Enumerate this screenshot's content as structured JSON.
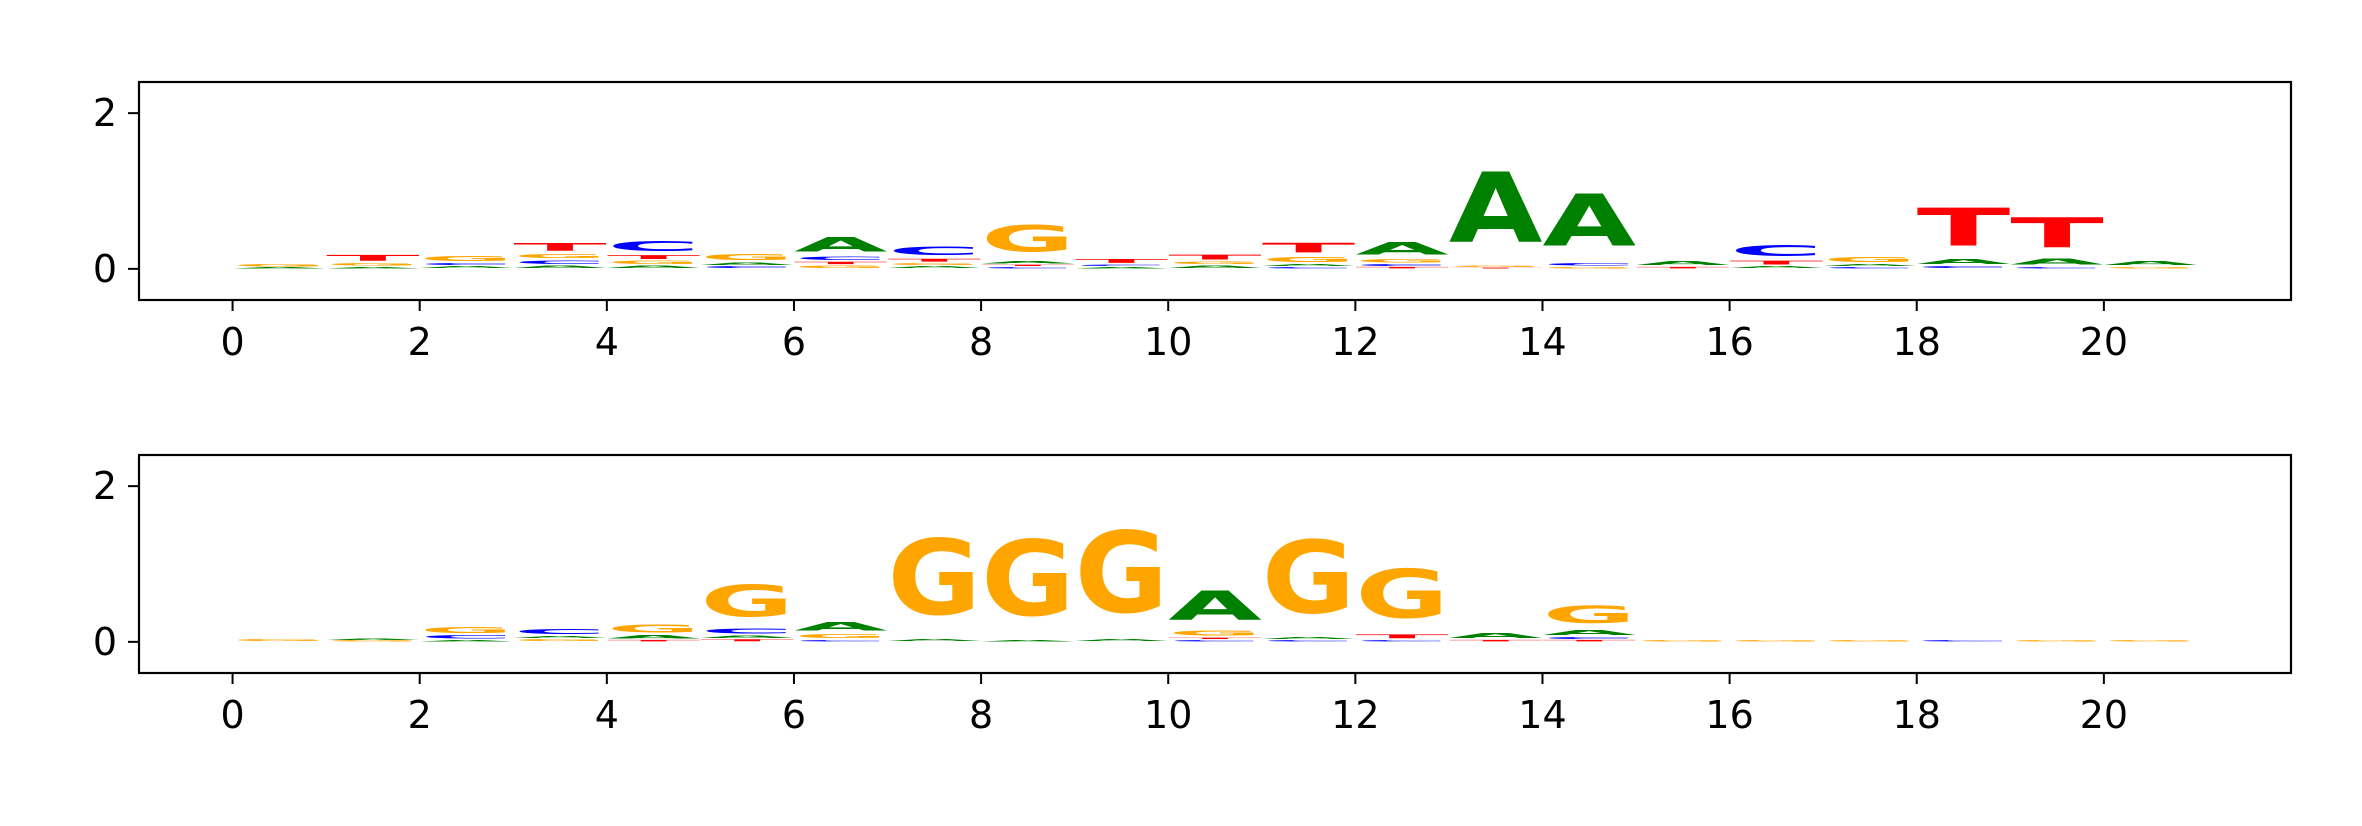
{
  "colors": {
    "A": "#008000",
    "C": "#0000ff",
    "G": "#ffa500",
    "T": "#ff0000"
  },
  "chart_data": [
    {
      "type": "sequence-logo",
      "title": "",
      "xlabel": "",
      "ylabel": "",
      "xlim": [
        -1,
        22
      ],
      "ylim": [
        -0.4,
        2.4
      ],
      "x_ticks": [
        "0",
        "2",
        "4",
        "6",
        "8",
        "10",
        "12",
        "14",
        "16",
        "18",
        "20"
      ],
      "y_ticks": [
        "0",
        "2"
      ],
      "columns": [
        {
          "x": 0,
          "letters": {
            "G": 0.05,
            "A": 0.02
          }
        },
        {
          "x": 1,
          "letters": {
            "A": 0.03,
            "G": 0.05,
            "T": 0.12
          }
        },
        {
          "x": 2,
          "letters": {
            "A": 0.04,
            "C": 0.04,
            "G": 0.1
          }
        },
        {
          "x": 3,
          "letters": {
            "A": 0.05,
            "C": 0.07,
            "G": 0.08,
            "T": 0.16
          }
        },
        {
          "x": 4,
          "letters": {
            "A": 0.05,
            "T": 0.08,
            "G": 0.06,
            "C": 0.2
          }
        },
        {
          "x": 5,
          "letters": {
            "A": 0.05,
            "C": 0.04,
            "G": 0.12
          }
        },
        {
          "x": 6,
          "letters": {
            "G": 0.05,
            "T": 0.05,
            "C": 0.06,
            "A": 0.3
          }
        },
        {
          "x": 7,
          "letters": {
            "A": 0.04,
            "G": 0.04,
            "T": 0.06,
            "C": 0.17
          }
        },
        {
          "x": 8,
          "letters": {
            "C": 0.03,
            "A": 0.05,
            "T": 0.03,
            "G": 0.55
          }
        },
        {
          "x": 9,
          "letters": {
            "A": 0.03,
            "C": 0.03,
            "T": 0.08
          }
        },
        {
          "x": 10,
          "letters": {
            "A": 0.05,
            "G": 0.05,
            "T": 0.1
          }
        },
        {
          "x": 11,
          "letters": {
            "A": 0.04,
            "C": 0.03,
            "G": 0.1,
            "T": 0.2
          }
        },
        {
          "x": 12,
          "letters": {
            "C": 0.04,
            "T": 0.03,
            "G": 0.06,
            "A": 0.26
          }
        },
        {
          "x": 13,
          "letters": {
            "G": 0.03,
            "T": 0.02,
            "A": 1.45
          }
        },
        {
          "x": 14,
          "letters": {
            "G": 0.03,
            "C": 0.05,
            "A": 1.07
          }
        },
        {
          "x": 15,
          "letters": {
            "T": 0.03,
            "A": 0.08
          }
        },
        {
          "x": 16,
          "letters": {
            "A": 0.04,
            "T": 0.08,
            "C": 0.22
          }
        },
        {
          "x": 17,
          "letters": {
            "C": 0.03,
            "A": 0.04,
            "G": 0.1
          }
        },
        {
          "x": 18,
          "letters": {
            "C": 0.04,
            "A": 0.1,
            "T": 0.78
          }
        },
        {
          "x": 19,
          "letters": {
            "C": 0.03,
            "A": 0.12,
            "T": 0.62
          }
        },
        {
          "x": 20,
          "letters": {
            "G": 0.03,
            "A": 0.08
          }
        }
      ]
    },
    {
      "type": "sequence-logo",
      "title": "",
      "xlabel": "",
      "ylabel": "",
      "xlim": [
        -1,
        22
      ],
      "ylim": [
        -0.4,
        2.4
      ],
      "x_ticks": [
        "0",
        "2",
        "4",
        "6",
        "8",
        "10",
        "12",
        "14",
        "16",
        "18",
        "20"
      ],
      "y_ticks": [
        "0",
        "2"
      ],
      "columns": [
        {
          "x": 0,
          "letters": {
            "G": 0.04
          }
        },
        {
          "x": 1,
          "letters": {
            "A": 0.03,
            "G": 0.02
          }
        },
        {
          "x": 2,
          "letters": {
            "A": 0.03,
            "C": 0.06,
            "G": 0.12
          }
        },
        {
          "x": 3,
          "letters": {
            "G": 0.04,
            "A": 0.04,
            "C": 0.1
          }
        },
        {
          "x": 4,
          "letters": {
            "T": 0.03,
            "A": 0.06,
            "G": 0.16
          }
        },
        {
          "x": 5,
          "letters": {
            "T": 0.04,
            "A": 0.05,
            "C": 0.1,
            "G": 0.65
          }
        },
        {
          "x": 6,
          "letters": {
            "C": 0.03,
            "G": 0.08,
            "A": 0.17
          }
        },
        {
          "x": 7,
          "letters": {
            "A": 0.04,
            "G": 1.55
          }
        },
        {
          "x": 8,
          "letters": {
            "A": 0.03,
            "G": 1.55
          }
        },
        {
          "x": 9,
          "letters": {
            "A": 0.04,
            "G": 1.68
          }
        },
        {
          "x": 10,
          "letters": {
            "C": 0.03,
            "T": 0.03,
            "G": 0.1,
            "A": 0.6
          }
        },
        {
          "x": 11,
          "letters": {
            "C": 0.03,
            "A": 0.04,
            "G": 1.5
          }
        },
        {
          "x": 12,
          "letters": {
            "C": 0.03,
            "T": 0.08,
            "G": 1.0
          }
        },
        {
          "x": 13,
          "letters": {
            "T": 0.03,
            "A": 0.1
          }
        },
        {
          "x": 14,
          "letters": {
            "T": 0.03,
            "C": 0.04,
            "A": 0.1,
            "G": 0.36
          }
        },
        {
          "x": 15,
          "letters": {
            "G": 0.02
          }
        },
        {
          "x": 16,
          "letters": {
            "G": 0.02
          }
        },
        {
          "x": 17,
          "letters": {
            "G": 0.02
          }
        },
        {
          "x": 18,
          "letters": {
            "C": 0.02
          }
        },
        {
          "x": 19,
          "letters": {
            "G": 0.02
          }
        },
        {
          "x": 20,
          "letters": {
            "G": 0.03
          }
        }
      ]
    }
  ]
}
